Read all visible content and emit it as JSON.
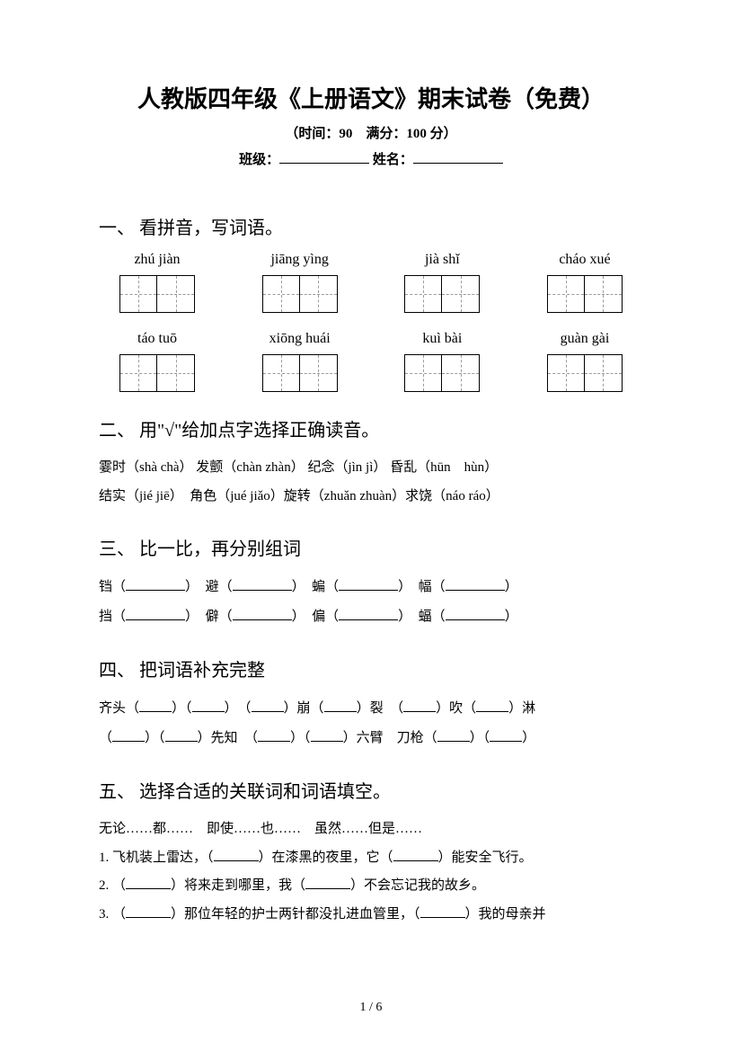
{
  "doc": {
    "title": "人教版四年级《上册语文》期末试卷（免费）",
    "subtitle": "（时间：90　满分：100 分）",
    "class_label": "班级：",
    "name_label": "姓名：",
    "page_number": "1 / 6"
  },
  "section1": {
    "title": "一、 看拼音，写词语。",
    "row1": [
      "zhú jiàn",
      "jiāng yìng",
      "jià shǐ",
      "cháo xué"
    ],
    "row2": [
      "táo tuō",
      "xiōng huái",
      "kuì bài",
      "guàn gài"
    ]
  },
  "section2": {
    "title": "二、 用\"√\"给加点字选择正确读音。",
    "line1": "霎时（shà  chà） 发颤（chàn  zhàn） 纪念（jìn  jì） 昏乱（hūn　hùn）",
    "line2": "结实（jié  jiē）　角色（jué  jiǎo）旋转（zhuǎn zhuàn）求饶（náo  ráo）"
  },
  "section3": {
    "title": "三、 比一比，再分别组词",
    "pairs_row1": [
      "铛",
      "避",
      "蝙",
      "幅"
    ],
    "pairs_row2": [
      "挡",
      "僻",
      "偏",
      "蝠"
    ]
  },
  "section4": {
    "title": "四、 把词语补充完整",
    "line1_parts": [
      "齐头（",
      "）（",
      "）　（",
      "）崩（",
      "）裂　（",
      "）吹（",
      "）淋"
    ],
    "line2_parts": [
      "（",
      "）（",
      "）先知　（",
      "）（",
      "）六臂　刀枪（",
      "）（",
      "）"
    ]
  },
  "section5": {
    "title": "五、 选择合适的关联词和词语填空。",
    "options": "无论……都……　即使……也……　虽然……但是……",
    "q1_a": "1. 飞机装上雷达，（",
    "q1_b": "）在漆黑的夜里，它（",
    "q1_c": "）能安全飞行。",
    "q2_a": "2. （",
    "q2_b": "）将来走到哪里，我（",
    "q2_c": "）不会忘记我的故乡。",
    "q3_a": "3. （",
    "q3_b": "）那位年轻的护士两针都没扎进血管里，（",
    "q3_c": "）我的母亲并"
  }
}
